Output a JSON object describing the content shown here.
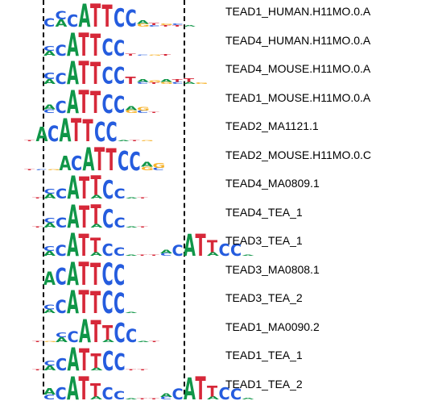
{
  "colors": {
    "A": "#109648",
    "C": "#255CDE",
    "G": "#F7B32B",
    "T": "#D62839"
  },
  "motifs": [
    {
      "name": "TEAD1_HUMAN.H11MO.0.A",
      "positions": [
        {
          "letters": "C",
          "heights": [
            0.35
          ]
        },
        {
          "letters": "AC",
          "heights": [
            0.3,
            0.35
          ]
        },
        {
          "letters": "C",
          "heights": [
            0.5
          ]
        },
        {
          "letters": "A",
          "heights": [
            0.95
          ]
        },
        {
          "letters": "T",
          "heights": [
            0.95
          ]
        },
        {
          "letters": "T",
          "heights": [
            0.9
          ]
        },
        {
          "letters": "C",
          "heights": [
            0.75
          ]
        },
        {
          "letters": "C",
          "heights": [
            0.7
          ]
        },
        {
          "letters": "AG",
          "heights": [
            0.15,
            0.12
          ]
        },
        {
          "letters": "TC",
          "heights": [
            0.08,
            0.06
          ]
        },
        {
          "letters": "GT",
          "heights": [
            0.07,
            0.06
          ]
        },
        {
          "letters": "CT",
          "heights": [
            0.07,
            0.06
          ]
        },
        {
          "letters": "A",
          "heights": [
            0.06
          ]
        }
      ]
    },
    {
      "name": "TEAD4_HUMAN.H11MO.0.A",
      "positions": [
        {
          "letters": "AC",
          "heights": [
            0.2,
            0.2
          ]
        },
        {
          "letters": "C",
          "heights": [
            0.45
          ]
        },
        {
          "letters": "A",
          "heights": [
            0.95
          ]
        },
        {
          "letters": "T",
          "heights": [
            0.95
          ]
        },
        {
          "letters": "T",
          "heights": [
            0.9
          ]
        },
        {
          "letters": "C",
          "heights": [
            0.7
          ]
        },
        {
          "letters": "C",
          "heights": [
            0.65
          ]
        },
        {
          "letters": "T",
          "heights": [
            0.08
          ]
        },
        {
          "letters": "C",
          "heights": [
            0.05
          ]
        },
        {
          "letters": "G",
          "heights": [
            0.05
          ]
        },
        {
          "letters": "T",
          "heights": [
            0.06
          ]
        }
      ]
    },
    {
      "name": "TEAD4_MOUSE.H11MO.0.A",
      "positions": [
        {
          "letters": "AC",
          "heights": [
            0.2,
            0.25
          ]
        },
        {
          "letters": "C",
          "heights": [
            0.45
          ]
        },
        {
          "letters": "A",
          "heights": [
            0.95
          ]
        },
        {
          "letters": "T",
          "heights": [
            0.95
          ]
        },
        {
          "letters": "T",
          "heights": [
            0.9
          ]
        },
        {
          "letters": "C",
          "heights": [
            0.7
          ]
        },
        {
          "letters": "C",
          "heights": [
            0.7
          ]
        },
        {
          "letters": "T",
          "heights": [
            0.3
          ]
        },
        {
          "letters": "AC",
          "heights": [
            0.1,
            0.08
          ]
        },
        {
          "letters": "GT",
          "heights": [
            0.08,
            0.06
          ]
        },
        {
          "letters": "AG",
          "heights": [
            0.1,
            0.08
          ]
        },
        {
          "letters": "CT",
          "heights": [
            0.08,
            0.1
          ]
        },
        {
          "letters": "TA",
          "heights": [
            0.15,
            0.08
          ]
        },
        {
          "letters": "G",
          "heights": [
            0.06
          ]
        }
      ]
    },
    {
      "name": "TEAD1_MOUSE.H11MO.0.A",
      "positions": [
        {
          "letters": "AC",
          "heights": [
            0.2,
            0.15
          ]
        },
        {
          "letters": "C",
          "heights": [
            0.5
          ]
        },
        {
          "letters": "A",
          "heights": [
            0.95
          ]
        },
        {
          "letters": "T",
          "heights": [
            0.95
          ]
        },
        {
          "letters": "T",
          "heights": [
            0.9
          ]
        },
        {
          "letters": "C",
          "heights": [
            0.75
          ]
        },
        {
          "letters": "C",
          "heights": [
            0.7
          ]
        },
        {
          "letters": "AG",
          "heights": [
            0.18,
            0.12
          ]
        },
        {
          "letters": "GC",
          "heights": [
            0.15,
            0.1
          ]
        },
        {
          "letters": "T",
          "heights": [
            0.05
          ]
        }
      ]
    },
    {
      "name": "TEAD2_MA1121.1",
      "positions": [
        {
          "letters": "T",
          "heights": [
            0.03
          ]
        },
        {
          "letters": "A",
          "heights": [
            0.6
          ]
        },
        {
          "letters": "C",
          "heights": [
            0.65
          ]
        },
        {
          "letters": "A",
          "heights": [
            0.95
          ]
        },
        {
          "letters": "T",
          "heights": [
            0.95
          ]
        },
        {
          "letters": "T",
          "heights": [
            0.9
          ]
        },
        {
          "letters": "C",
          "heights": [
            0.8
          ]
        },
        {
          "letters": "C",
          "heights": [
            0.8
          ]
        },
        {
          "letters": "A",
          "heights": [
            0.04
          ]
        },
        {
          "letters": "T",
          "heights": [
            0.03
          ]
        },
        {
          "letters": "G",
          "heights": [
            0.03
          ]
        }
      ]
    },
    {
      "name": "TEAD2_MOUSE.H11MO.0.C",
      "positions": [
        {
          "letters": "T",
          "heights": [
            0.03
          ]
        },
        {
          "letters": "C",
          "heights": [
            0.03
          ]
        },
        {
          "letters": "G",
          "heights": [
            0.04
          ]
        },
        {
          "letters": "A",
          "heights": [
            0.6
          ]
        },
        {
          "letters": "C",
          "heights": [
            0.6
          ]
        },
        {
          "letters": "A",
          "heights": [
            0.95
          ]
        },
        {
          "letters": "T",
          "heights": [
            0.95
          ]
        },
        {
          "letters": "T",
          "heights": [
            0.9
          ]
        },
        {
          "letters": "C",
          "heights": [
            0.8
          ]
        },
        {
          "letters": "C",
          "heights": [
            0.75
          ]
        },
        {
          "letters": "AG",
          "heights": [
            0.2,
            0.15
          ]
        },
        {
          "letters": "GC",
          "heights": [
            0.2,
            0.1
          ]
        }
      ]
    },
    {
      "name": "TEAD4_MA0809.1",
      "positions": [
        {
          "letters": "T",
          "heights": [
            0.04
          ]
        },
        {
          "letters": "AC",
          "heights": [
            0.2,
            0.2
          ]
        },
        {
          "letters": "C",
          "heights": [
            0.4
          ]
        },
        {
          "letters": "A",
          "heights": [
            0.95
          ]
        },
        {
          "letters": "T",
          "heights": [
            0.9
          ]
        },
        {
          "letters": "TA",
          "heights": [
            0.8,
            0.15
          ]
        },
        {
          "letters": "C",
          "heights": [
            0.75
          ]
        },
        {
          "letters": "C",
          "heights": [
            0.4
          ]
        },
        {
          "letters": "A",
          "heights": [
            0.04
          ]
        },
        {
          "letters": "T",
          "heights": [
            0.03
          ]
        }
      ]
    },
    {
      "name": "TEAD4_TEA_1",
      "positions": [
        {
          "letters": "T",
          "heights": [
            0.04
          ]
        },
        {
          "letters": "AC",
          "heights": [
            0.2,
            0.2
          ]
        },
        {
          "letters": "C",
          "heights": [
            0.4
          ]
        },
        {
          "letters": "A",
          "heights": [
            0.95
          ]
        },
        {
          "letters": "T",
          "heights": [
            0.9
          ]
        },
        {
          "letters": "TA",
          "heights": [
            0.8,
            0.15
          ]
        },
        {
          "letters": "C",
          "heights": [
            0.75
          ]
        },
        {
          "letters": "C",
          "heights": [
            0.4
          ]
        },
        {
          "letters": "A",
          "heights": [
            0.04
          ]
        },
        {
          "letters": "T",
          "heights": [
            0.03
          ]
        }
      ]
    },
    {
      "name": "TEAD3_TEA_1",
      "positions": [
        {
          "letters": "AC",
          "heights": [
            0.2,
            0.2
          ]
        },
        {
          "letters": "C",
          "heights": [
            0.45
          ]
        },
        {
          "letters": "A",
          "heights": [
            0.95
          ]
        },
        {
          "letters": "T",
          "heights": [
            0.9
          ]
        },
        {
          "letters": "TA",
          "heights": [
            0.6,
            0.15
          ]
        },
        {
          "letters": "C",
          "heights": [
            0.5
          ]
        },
        {
          "letters": "C",
          "heights": [
            0.35
          ]
        },
        {
          "letters": "A",
          "heights": [
            0.05
          ]
        },
        {
          "letters": "T",
          "heights": [
            0.04
          ]
        },
        {
          "letters": "T",
          "heights": [
            0.04
          ]
        },
        {
          "letters": "AC",
          "heights": [
            0.15,
            0.1
          ]
        },
        {
          "letters": "C",
          "heights": [
            0.45
          ]
        },
        {
          "letters": "A",
          "heights": [
            0.9
          ]
        },
        {
          "letters": "T",
          "heights": [
            0.9
          ]
        },
        {
          "letters": "TA",
          "heights": [
            0.5,
            0.15
          ]
        },
        {
          "letters": "C",
          "heights": [
            0.5
          ]
        },
        {
          "letters": "C",
          "heights": [
            0.5
          ]
        },
        {
          "letters": "A",
          "heights": [
            0.05
          ]
        }
      ]
    },
    {
      "name": "TEAD3_MA0808.1",
      "positions": [
        {
          "letters": "A",
          "heights": [
            0.55
          ]
        },
        {
          "letters": "C",
          "heights": [
            0.7
          ]
        },
        {
          "letters": "A",
          "heights": [
            0.95
          ]
        },
        {
          "letters": "T",
          "heights": [
            0.95
          ]
        },
        {
          "letters": "T",
          "heights": [
            0.9
          ]
        },
        {
          "letters": "C",
          "heights": [
            0.9
          ]
        },
        {
          "letters": "C",
          "heights": [
            0.85
          ]
        }
      ]
    },
    {
      "name": "TEAD3_TEA_2",
      "positions": [
        {
          "letters": "AC",
          "heights": [
            0.15,
            0.2
          ]
        },
        {
          "letters": "C",
          "heights": [
            0.55
          ]
        },
        {
          "letters": "A",
          "heights": [
            0.95
          ]
        },
        {
          "letters": "T",
          "heights": [
            0.95
          ]
        },
        {
          "letters": "T",
          "heights": [
            0.9
          ]
        },
        {
          "letters": "C",
          "heights": [
            0.9
          ]
        },
        {
          "letters": "C",
          "heights": [
            0.85
          ]
        },
        {
          "letters": "A",
          "heights": [
            0.05
          ]
        }
      ]
    },
    {
      "name": "TEAD1_MA0090.2",
      "positions": [
        {
          "letters": "T",
          "heights": [
            0.03
          ]
        },
        {
          "letters": "G",
          "heights": [
            0.03
          ]
        },
        {
          "letters": "AC",
          "heights": [
            0.2,
            0.2
          ]
        },
        {
          "letters": "C",
          "heights": [
            0.45
          ]
        },
        {
          "letters": "A",
          "heights": [
            0.95
          ]
        },
        {
          "letters": "T",
          "heights": [
            0.9
          ]
        },
        {
          "letters": "TA",
          "heights": [
            0.6,
            0.1
          ]
        },
        {
          "letters": "C",
          "heights": [
            0.8
          ]
        },
        {
          "letters": "C",
          "heights": [
            0.55
          ]
        },
        {
          "letters": "A",
          "heights": [
            0.05
          ]
        },
        {
          "letters": "T",
          "heights": [
            0.03
          ]
        }
      ]
    },
    {
      "name": "TEAD1_TEA_1",
      "positions": [
        {
          "letters": "T",
          "heights": [
            0.03
          ]
        },
        {
          "letters": "AC",
          "heights": [
            0.2,
            0.2
          ]
        },
        {
          "letters": "C",
          "heights": [
            0.5
          ]
        },
        {
          "letters": "A",
          "heights": [
            0.95
          ]
        },
        {
          "letters": "T",
          "heights": [
            0.9
          ]
        },
        {
          "letters": "TA",
          "heights": [
            0.6,
            0.1
          ]
        },
        {
          "letters": "C",
          "heights": [
            0.8
          ]
        },
        {
          "letters": "C",
          "heights": [
            0.7
          ]
        },
        {
          "letters": "T",
          "heights": [
            0.04
          ]
        },
        {
          "letters": "T",
          "heights": [
            0.04
          ]
        }
      ]
    },
    {
      "name": "TEAD1_TEA_2",
      "positions": [
        {
          "letters": "AC",
          "heights": [
            0.25,
            0.2
          ]
        },
        {
          "letters": "C",
          "heights": [
            0.5
          ]
        },
        {
          "letters": "A",
          "heights": [
            0.95
          ]
        },
        {
          "letters": "T",
          "heights": [
            0.95
          ]
        },
        {
          "letters": "TA",
          "heights": [
            0.55,
            0.12
          ]
        },
        {
          "letters": "C",
          "heights": [
            0.5
          ]
        },
        {
          "letters": "C",
          "heights": [
            0.35
          ]
        },
        {
          "letters": "A",
          "heights": [
            0.05
          ]
        },
        {
          "letters": "T",
          "heights": [
            0.04
          ]
        },
        {
          "letters": "T",
          "heights": [
            0.04
          ]
        },
        {
          "letters": "AC",
          "heights": [
            0.15,
            0.1
          ]
        },
        {
          "letters": "C",
          "heights": [
            0.45
          ]
        },
        {
          "letters": "A",
          "heights": [
            0.9
          ]
        },
        {
          "letters": "T",
          "heights": [
            0.95
          ]
        },
        {
          "letters": "TA",
          "heights": [
            0.45,
            0.12
          ]
        },
        {
          "letters": "C",
          "heights": [
            0.5
          ]
        },
        {
          "letters": "C",
          "heights": [
            0.45
          ]
        },
        {
          "letters": "A",
          "heights": [
            0.06
          ]
        }
      ]
    }
  ]
}
